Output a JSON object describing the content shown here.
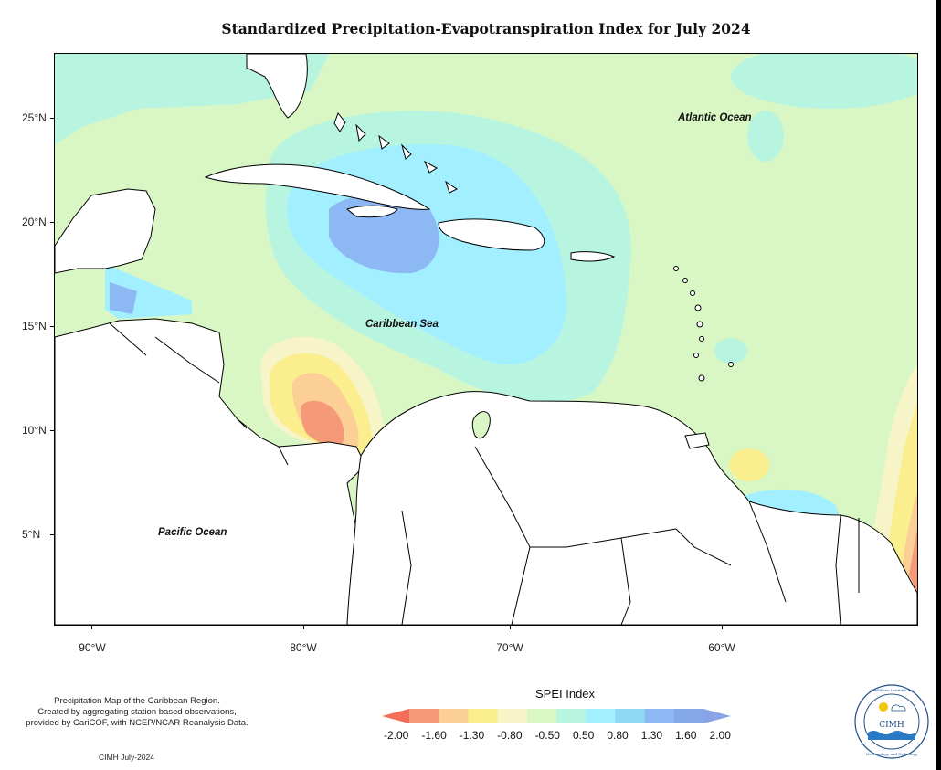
{
  "title": "Standardized Precipitation-Evapotranspiration Index for July 2024",
  "labels": {
    "atlantic": "Atlantic Ocean",
    "caribbean": "Caribbean Sea",
    "pacific": "Pacific Ocean"
  },
  "lat_axis": [
    "25°N",
    "20°N",
    "15°N",
    "10°N",
    "5°N"
  ],
  "lon_axis": [
    "90°W",
    "80°W",
    "70°W",
    "60°W"
  ],
  "footnote": {
    "line1": "Precipitation Map of the Caribbean Region.",
    "line2": "Created by aggregating station based observations,",
    "line3": "provided by CariCOF, with NCEP/NCAR Reanalysis Data."
  },
  "credit": "CIMH July-2024",
  "legend": {
    "title": "SPEI Index",
    "ticks": [
      "-2.00",
      "-1.60",
      "-1.30",
      "-0.80",
      "-0.50",
      "0.50",
      "0.80",
      "1.30",
      "1.60",
      "2.00"
    ],
    "colors": [
      "#f46d5a",
      "#f59a78",
      "#fbcf95",
      "#fbee8e",
      "#f7f4c8",
      "#d8f7c4",
      "#b8f5e0",
      "#a2efff",
      "#8fd9f5",
      "#8cb8f4",
      "#85a8e8",
      "#8aa2e6"
    ]
  },
  "logo": {
    "text": "CIMH",
    "ring_top": "Caribbean Institute for",
    "ring_bottom": "Meteorology and Hydrology"
  }
}
